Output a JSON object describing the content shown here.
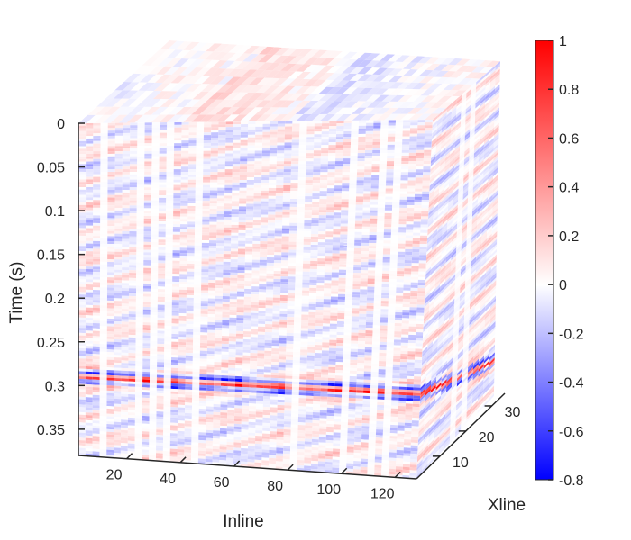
{
  "chart_data": {
    "type": "heatmap",
    "subtype": "3d-volume-slice",
    "title": "",
    "axes": {
      "time": {
        "label": "Time (s)",
        "range": [
          0,
          0.38
        ],
        "direction": "down",
        "ticks": [
          "0",
          "0.05",
          "0.1",
          "0.15",
          "0.2",
          "0.25",
          "0.3",
          "0.35"
        ],
        "tick_values": [
          0,
          0.05,
          0.1,
          0.15,
          0.2,
          0.25,
          0.3,
          0.35
        ]
      },
      "inline": {
        "label": "Inline",
        "range": [
          2,
          128
        ],
        "ticks": [
          "20",
          "40",
          "60",
          "80",
          "100",
          "120"
        ],
        "tick_values": [
          20,
          40,
          60,
          80,
          100,
          120
        ]
      },
      "xline": {
        "label": "Xline",
        "range": [
          1,
          35
        ],
        "ticks": [
          "10",
          "20",
          "30"
        ],
        "tick_values": [
          10,
          20,
          30
        ]
      }
    },
    "colorbar": {
      "range": [
        -0.8,
        1
      ],
      "ticks": [
        "1",
        "0.8",
        "0.6",
        "0.4",
        "0.2",
        "0",
        "-0.2",
        "-0.4",
        "-0.6",
        "-0.8"
      ],
      "tick_values": [
        1,
        0.8,
        0.6,
        0.4,
        0.2,
        0,
        -0.2,
        -0.4,
        -0.6,
        -0.8
      ],
      "colormap": "blue-white-red",
      "colors": {
        "min": "#0000ff",
        "mid": "#ffffff",
        "max": "#ff0000"
      }
    },
    "data_notes": {
      "strong_event_time": 0.29,
      "strong_event_amplitude": [
        -0.8,
        1
      ]
    }
  }
}
